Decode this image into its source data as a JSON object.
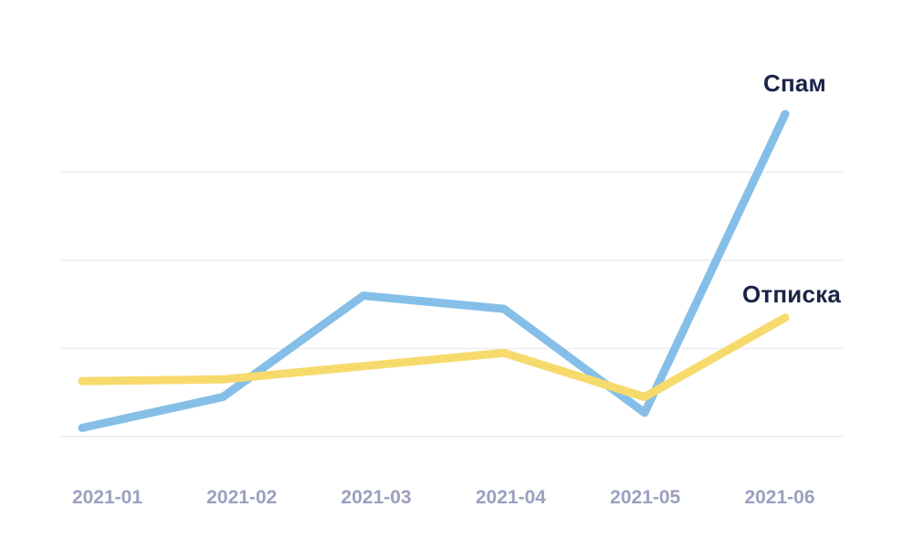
{
  "chart_data": {
    "type": "line",
    "title": "",
    "xlabel": "",
    "ylabel": "",
    "categories": [
      "2021-01",
      "2021-02",
      "2021-03",
      "2021-04",
      "2021-05",
      "2021-06"
    ],
    "series": [
      {
        "name": "Спам",
        "color": "#85BFE8",
        "values": [
          0.1,
          0.45,
          1.6,
          1.45,
          0.27,
          3.66
        ]
      },
      {
        "name": "Отписка",
        "color": "#F7DA6C",
        "values": [
          0.63,
          0.65,
          0.8,
          0.95,
          0.45,
          1.35
        ]
      }
    ],
    "ylim": [
      0,
      4.2
    ],
    "gridline_values": [
      0,
      1,
      2,
      3
    ],
    "grid": "horizontal-only",
    "y_axis_labels_shown": false,
    "legend_position": "labels-at-line-end",
    "background_color": "#ffffff",
    "gridline_color": "#F0F1F5",
    "tick_label_color": "#9CA0BF",
    "series_label_color": "#1B2348"
  }
}
